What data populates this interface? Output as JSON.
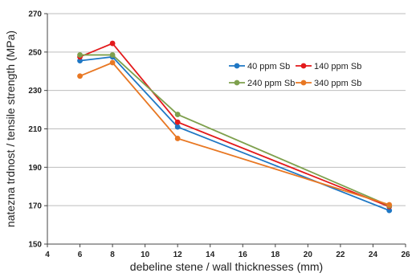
{
  "chart_data": {
    "type": "line",
    "title": "",
    "xlabel": "debeline stene / wall thicknesses (mm)",
    "ylabel": "natezna trdnost / tensile strength (MPa)",
    "xlim": [
      4,
      26
    ],
    "ylim": [
      150,
      270
    ],
    "xticks": [
      4,
      6,
      8,
      10,
      12,
      14,
      16,
      18,
      20,
      22,
      24,
      26
    ],
    "yticks": [
      150,
      170,
      190,
      210,
      230,
      250,
      270
    ],
    "grid": "horizontal",
    "legend_position": "inside-right",
    "x": [
      6,
      8,
      12,
      25
    ],
    "series": [
      {
        "name": "40 ppm Sb",
        "color": "#1f77c4",
        "values": [
          245.5,
          247.5,
          211,
          167.5
        ]
      },
      {
        "name": "140 ppm Sb",
        "color": "#e31a1c",
        "values": [
          247.5,
          254.5,
          213.5,
          169.5
        ]
      },
      {
        "name": "240 ppm Sb",
        "color": "#7ea04d",
        "values": [
          248.5,
          248.5,
          217.5,
          170
        ]
      },
      {
        "name": "340 ppm Sb",
        "color": "#e87722",
        "values": [
          237.5,
          244.5,
          205,
          170.5
        ]
      }
    ]
  }
}
